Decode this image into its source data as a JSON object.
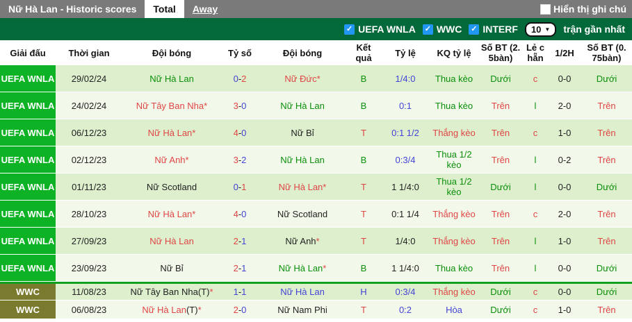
{
  "topbar": {
    "title": "Nữ Hà Lan - Historic scores",
    "tabs": [
      {
        "label": "Total",
        "active": true
      },
      {
        "label": "Away",
        "active": false
      }
    ],
    "note_checkbox_label": "Hiển thị ghi chú",
    "note_checkbox_checked": false
  },
  "filterbar": {
    "checkboxes": [
      {
        "label": "UEFA WNLA",
        "checked": true
      },
      {
        "label": "WWC",
        "checked": true
      },
      {
        "label": "INTERF",
        "checked": true
      }
    ],
    "select_value": "10",
    "suffix_label": "trận gần nhất",
    "icons": {
      "checkbox": "checkmark-icon",
      "select": "chevron-down-icon"
    }
  },
  "table": {
    "headers": [
      "Giải đấu",
      "Thời gian",
      "Đội bóng",
      "Tỷ số",
      "Đội bóng",
      "Kết\nquả",
      "Tỷ lệ",
      "KQ tỷ lệ",
      "Số BT (2.\n5bàn)",
      "Lẻ c\nhẵn",
      "1/2H",
      "Số BT (0.\n75bàn)"
    ],
    "rows": [
      {
        "league": "UEFA WNLA",
        "lc": "green",
        "date": "29/02/24",
        "home": [
          {
            "t": "Nữ Hà Lan",
            "c": "green"
          }
        ],
        "score": [
          {
            "t": "0",
            "c": "blue"
          },
          {
            "t": "-",
            "c": "black"
          },
          {
            "t": "2",
            "c": "red"
          }
        ],
        "away": [
          {
            "t": "Nữ Đức*",
            "c": "red"
          }
        ],
        "result": {
          "t": "B",
          "c": "green"
        },
        "odds": {
          "t": "1/4:0",
          "c": "blue"
        },
        "kq": {
          "t": "Thua kèo",
          "c": "green"
        },
        "o25": {
          "t": "Dưới",
          "c": "green"
        },
        "oe": {
          "t": "c",
          "c": "red"
        },
        "half": "0-0",
        "o075": {
          "t": "Dưới",
          "c": "green"
        }
      },
      {
        "league": "UEFA WNLA",
        "lc": "green",
        "date": "24/02/24",
        "home": [
          {
            "t": "Nữ Tây Ban Nha*",
            "c": "red"
          }
        ],
        "score": [
          {
            "t": "3",
            "c": "red"
          },
          {
            "t": "-",
            "c": "black"
          },
          {
            "t": "0",
            "c": "blue"
          }
        ],
        "away": [
          {
            "t": "Nữ Hà Lan",
            "c": "green"
          }
        ],
        "result": {
          "t": "B",
          "c": "green"
        },
        "odds": {
          "t": "0:1",
          "c": "blue"
        },
        "kq": {
          "t": "Thua kèo",
          "c": "green"
        },
        "o25": {
          "t": "Trên",
          "c": "red"
        },
        "oe": {
          "t": "l",
          "c": "green"
        },
        "half": "2-0",
        "o075": {
          "t": "Trên",
          "c": "red"
        }
      },
      {
        "league": "UEFA WNLA",
        "lc": "green",
        "date": "06/12/23",
        "home": [
          {
            "t": "Nữ Hà Lan*",
            "c": "red"
          }
        ],
        "score": [
          {
            "t": "4",
            "c": "red"
          },
          {
            "t": "-",
            "c": "black"
          },
          {
            "t": "0",
            "c": "blue"
          }
        ],
        "away": [
          {
            "t": "Nữ Bỉ",
            "c": "black"
          }
        ],
        "result": {
          "t": "T",
          "c": "red"
        },
        "odds": {
          "t": "0:1 1/2",
          "c": "blue"
        },
        "kq": {
          "t": "Thắng kèo",
          "c": "red"
        },
        "o25": {
          "t": "Trên",
          "c": "red"
        },
        "oe": {
          "t": "c",
          "c": "red"
        },
        "half": "1-0",
        "o075": {
          "t": "Trên",
          "c": "red"
        }
      },
      {
        "league": "UEFA WNLA",
        "lc": "green",
        "date": "02/12/23",
        "home": [
          {
            "t": "Nữ Anh*",
            "c": "red"
          }
        ],
        "score": [
          {
            "t": "3",
            "c": "red"
          },
          {
            "t": "-",
            "c": "black"
          },
          {
            "t": "2",
            "c": "blue"
          }
        ],
        "away": [
          {
            "t": "Nữ Hà Lan",
            "c": "green"
          }
        ],
        "result": {
          "t": "B",
          "c": "green"
        },
        "odds": {
          "t": "0:3/4",
          "c": "blue"
        },
        "kq": {
          "t": "Thua 1/2 kèo",
          "c": "green"
        },
        "o25": {
          "t": "Trên",
          "c": "red"
        },
        "oe": {
          "t": "l",
          "c": "green"
        },
        "half": "0-2",
        "o075": {
          "t": "Trên",
          "c": "red"
        }
      },
      {
        "league": "UEFA WNLA",
        "lc": "green",
        "date": "01/11/23",
        "home": [
          {
            "t": "Nữ Scotland",
            "c": "black"
          }
        ],
        "score": [
          {
            "t": "0",
            "c": "blue"
          },
          {
            "t": "-",
            "c": "black"
          },
          {
            "t": "1",
            "c": "red"
          }
        ],
        "away": [
          {
            "t": "Nữ Hà Lan*",
            "c": "red"
          }
        ],
        "result": {
          "t": "T",
          "c": "red"
        },
        "odds": {
          "t": "1 1/4:0",
          "c": "black"
        },
        "kq": {
          "t": "Thua 1/2 kèo",
          "c": "green"
        },
        "o25": {
          "t": "Dưới",
          "c": "green"
        },
        "oe": {
          "t": "l",
          "c": "green"
        },
        "half": "0-0",
        "o075": {
          "t": "Dưới",
          "c": "green"
        }
      },
      {
        "league": "UEFA WNLA",
        "lc": "green",
        "date": "28/10/23",
        "home": [
          {
            "t": "Nữ Hà Lan*",
            "c": "red"
          }
        ],
        "score": [
          {
            "t": "4",
            "c": "red"
          },
          {
            "t": "-",
            "c": "black"
          },
          {
            "t": "0",
            "c": "blue"
          }
        ],
        "away": [
          {
            "t": "Nữ Scotland",
            "c": "black"
          }
        ],
        "result": {
          "t": "T",
          "c": "red"
        },
        "odds": {
          "t": "0:1 1/4",
          "c": "black"
        },
        "kq": {
          "t": "Thắng kèo",
          "c": "red"
        },
        "o25": {
          "t": "Trên",
          "c": "red"
        },
        "oe": {
          "t": "c",
          "c": "red"
        },
        "half": "2-0",
        "o075": {
          "t": "Trên",
          "c": "red"
        }
      },
      {
        "league": "UEFA WNLA",
        "lc": "green",
        "date": "27/09/23",
        "home": [
          {
            "t": "Nữ Hà Lan",
            "c": "red"
          }
        ],
        "score": [
          {
            "t": "2",
            "c": "red"
          },
          {
            "t": "-",
            "c": "black"
          },
          {
            "t": "1",
            "c": "blue"
          }
        ],
        "away": [
          {
            "t": "Nữ Anh",
            "c": "black"
          },
          {
            "t": "*",
            "c": "red"
          }
        ],
        "result": {
          "t": "T",
          "c": "red"
        },
        "odds": {
          "t": "1/4:0",
          "c": "black"
        },
        "kq": {
          "t": "Thắng kèo",
          "c": "red"
        },
        "o25": {
          "t": "Trên",
          "c": "red"
        },
        "oe": {
          "t": "l",
          "c": "green"
        },
        "half": "1-0",
        "o075": {
          "t": "Trên",
          "c": "red"
        }
      },
      {
        "league": "UEFA WNLA",
        "lc": "green",
        "date": "23/09/23",
        "home": [
          {
            "t": "Nữ Bỉ",
            "c": "black"
          }
        ],
        "score": [
          {
            "t": "2",
            "c": "red"
          },
          {
            "t": "-",
            "c": "black"
          },
          {
            "t": "1",
            "c": "blue"
          }
        ],
        "away": [
          {
            "t": "Nữ Hà Lan",
            "c": "green"
          },
          {
            "t": "*",
            "c": "red"
          }
        ],
        "result": {
          "t": "B",
          "c": "green"
        },
        "odds": {
          "t": "1 1/4:0",
          "c": "black"
        },
        "kq": {
          "t": "Thua kèo",
          "c": "green"
        },
        "o25": {
          "t": "Trên",
          "c": "red"
        },
        "oe": {
          "t": "l",
          "c": "green"
        },
        "half": "0-0",
        "o075": {
          "t": "Dưới",
          "c": "green"
        }
      },
      {
        "league": "WWC",
        "lc": "olive",
        "date": "11/08/23",
        "home": [
          {
            "t": "Nữ Tây Ban Nha(T)",
            "c": "black"
          },
          {
            "t": "*",
            "c": "red"
          }
        ],
        "score": [
          {
            "t": "1",
            "c": "blue"
          },
          {
            "t": "-",
            "c": "black"
          },
          {
            "t": "1",
            "c": "blue"
          }
        ],
        "away": [
          {
            "t": "Nữ Hà Lan",
            "c": "blue"
          }
        ],
        "result": {
          "t": "H",
          "c": "blue"
        },
        "odds": {
          "t": "0:3/4",
          "c": "blue"
        },
        "kq": {
          "t": "Thắng kèo",
          "c": "red"
        },
        "o25": {
          "t": "Dưới",
          "c": "green"
        },
        "oe": {
          "t": "c",
          "c": "red"
        },
        "half": "0-0",
        "o075": {
          "t": "Dưới",
          "c": "green"
        }
      },
      {
        "league": "WWC",
        "lc": "olive",
        "date": "06/08/23",
        "home": [
          {
            "t": "Nữ Hà Lan",
            "c": "red"
          },
          {
            "t": "(T)",
            "c": "black"
          },
          {
            "t": "*",
            "c": "red"
          }
        ],
        "score": [
          {
            "t": "2",
            "c": "red"
          },
          {
            "t": "-",
            "c": "black"
          },
          {
            "t": "0",
            "c": "blue"
          }
        ],
        "away": [
          {
            "t": "Nữ Nam Phi",
            "c": "black"
          }
        ],
        "result": {
          "t": "T",
          "c": "red"
        },
        "odds": {
          "t": "0:2",
          "c": "blue"
        },
        "kq": {
          "t": "Hòa",
          "c": "blue"
        },
        "o25": {
          "t": "Dưới",
          "c": "green"
        },
        "oe": {
          "t": "c",
          "c": "red"
        },
        "half": "1-0",
        "o075": {
          "t": "Trên",
          "c": "red"
        }
      }
    ]
  },
  "colors": {
    "topbar_gray": "#7a7a7a",
    "filter_green": "#03683a",
    "badge_green": "#0eb325",
    "badge_olive": "#7b7b2f",
    "row_odd": "#ddefcd",
    "row_even": "#f2f9ea",
    "text_red": "#e04545",
    "text_green": "#0a8f0a",
    "text_blue": "#4343d6",
    "checkbox_blue": "#2196f3",
    "group_separator_green": "#12a11f"
  }
}
